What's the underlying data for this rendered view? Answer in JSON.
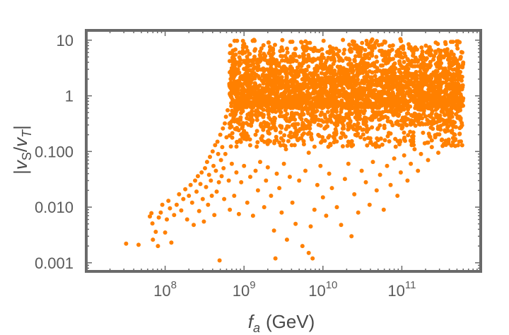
{
  "chart_data": {
    "type": "scatter",
    "title": "",
    "xlabel": {
      "symbol": "f",
      "subscript": "a",
      "unit": "(GeV)"
    },
    "ylabel": {
      "text": "|v_S/v_T|",
      "num": "v",
      "num_sub": "S",
      "den": "v",
      "den_sub": "T"
    },
    "xscale": "log",
    "yscale": "log",
    "xlim": [
      10000000.0,
      1000000000000.0
    ],
    "ylim": [
      0.0007,
      15
    ],
    "x_ticks": [
      {
        "value": 100000000.0,
        "base": "10",
        "exp": "8"
      },
      {
        "value": 1000000000.0,
        "base": "10",
        "exp": "9"
      },
      {
        "value": 10000000000.0,
        "base": "10",
        "exp": "10"
      },
      {
        "value": 100000000000.0,
        "base": "10",
        "exp": "11"
      }
    ],
    "y_ticks": [
      {
        "value": 0.001,
        "label": "0.001"
      },
      {
        "value": 0.01,
        "label": "0.010"
      },
      {
        "value": 0.1,
        "label": "0.100"
      },
      {
        "value": 1,
        "label": "1"
      },
      {
        "value": 10,
        "label": "10"
      }
    ],
    "series": [
      {
        "color": "#ff8000",
        "dense_region": {
          "x_range": [
            650000000.0,
            600000000000.0
          ],
          "y_range": [
            0.6,
            11
          ]
        },
        "points": [
          [
            32000000.0,
            0.0022
          ],
          [
            46000000.0,
            0.0021
          ],
          [
            64000000.0,
            0.0068
          ],
          [
            67000000.0,
            0.0078
          ],
          [
            69000000.0,
            0.0051
          ],
          [
            70000000.0,
            0.0026
          ],
          [
            76000000.0,
            0.0036
          ],
          [
            81000000.0,
            0.002
          ],
          [
            83000000.0,
            0.0065
          ],
          [
            88000000.0,
            0.008
          ],
          [
            92000000.0,
            0.011
          ],
          [
            100000000.0,
            0.0035
          ],
          [
            105000000.0,
            0.006
          ],
          [
            110000000.0,
            0.013
          ],
          [
            115000000.0,
            0.0095
          ],
          [
            120000000.0,
            0.0023
          ],
          [
            130000000.0,
            0.0072
          ],
          [
            140000000.0,
            0.011
          ],
          [
            150000000.0,
            0.017
          ],
          [
            160000000.0,
            0.0087
          ],
          [
            170000000.0,
            0.014
          ],
          [
            180000000.0,
            0.021
          ],
          [
            190000000.0,
            0.006
          ],
          [
            200000000.0,
            0.016
          ],
          [
            210000000.0,
            0.025
          ],
          [
            220000000.0,
            0.012
          ],
          [
            230000000.0,
            0.0048
          ],
          [
            240000000.0,
            0.03
          ],
          [
            250000000.0,
            0.019
          ],
          [
            260000000.0,
            0.036
          ],
          [
            270000000.0,
            0.0085
          ],
          [
            280000000.0,
            0.026
          ],
          [
            290000000.0,
            0.042
          ],
          [
            300000000.0,
            0.014
          ],
          [
            310000000.0,
            0.0055
          ],
          [
            320000000.0,
            0.05
          ],
          [
            330000000.0,
            0.023
          ],
          [
            340000000.0,
            0.065
          ],
          [
            350000000.0,
            0.011
          ],
          [
            360000000.0,
            0.038
          ],
          [
            370000000.0,
            0.08
          ],
          [
            380000000.0,
            0.03
          ],
          [
            390000000.0,
            0.016
          ],
          [
            400000000.0,
            0.1
          ],
          [
            410000000.0,
            0.055
          ],
          [
            420000000.0,
            0.0072
          ],
          [
            430000000.0,
            0.13
          ],
          [
            440000000.0,
            0.045
          ],
          [
            450000000.0,
            0.019
          ],
          [
            460000000.0,
            0.15
          ],
          [
            470000000.0,
            0.09
          ],
          [
            480000000.0,
            0.028
          ],
          [
            490000000.0,
            0.0011
          ],
          [
            500000000.0,
            0.2
          ],
          [
            510000000.0,
            0.07
          ],
          [
            520000000.0,
            0.036
          ],
          [
            530000000.0,
            0.12
          ],
          [
            540000000.0,
            0.26
          ],
          [
            550000000.0,
            0.05
          ],
          [
            560000000.0,
            0.014
          ],
          [
            570000000.0,
            0.32
          ],
          [
            580000000.0,
            0.09
          ],
          [
            590000000.0,
            0.42
          ],
          [
            600000000.0,
            0.18
          ],
          [
            620000000.0,
            0.55
          ],
          [
            640000000.0,
            0.03
          ],
          [
            660000000.0,
            0.009
          ],
          [
            700000000.0,
            0.06
          ],
          [
            750000000.0,
            0.016
          ],
          [
            800000000.0,
            0.042
          ],
          [
            860000000.0,
            0.0075
          ],
          [
            920000000.0,
            0.028
          ],
          [
            1000000000.0,
            0.055
          ],
          [
            1100000000.0,
            0.012
          ],
          [
            1200000000.0,
            0.035
          ],
          [
            1300000000.0,
            0.007
          ],
          [
            1400000000.0,
            0.045
          ],
          [
            1500000000.0,
            0.02
          ],
          [
            1600000000.0,
            0.065
          ],
          [
            1800000000.0,
            0.01
          ],
          [
            1900000000.0,
            0.03
          ],
          [
            2000000000.0,
            0.052
          ],
          [
            2200000000.0,
            0.016
          ],
          [
            2400000000.0,
            0.0038
          ],
          [
            2500000000.0,
            0.0012
          ],
          [
            2600000000.0,
            0.04
          ],
          [
            2800000000.0,
            0.022
          ],
          [
            3000000000.0,
            0.008
          ],
          [
            3200000000.0,
            0.06
          ],
          [
            3500000000.0,
            0.0026
          ],
          [
            3800000000.0,
            0.035
          ],
          [
            4100000000.0,
            0.012
          ],
          [
            4500000000.0,
            0.005
          ],
          [
            5000000000.0,
            0.03
          ],
          [
            5500000000.0,
            0.002
          ],
          [
            6000000000.0,
            0.045
          ],
          [
            6600000000.0,
            0.0015
          ],
          [
            7000000000.0,
            0.0045
          ],
          [
            7400000000.0,
            0.0012
          ],
          [
            7800000000.0,
            0.009
          ],
          [
            8500000000.0,
            0.025
          ],
          [
            9300000000.0,
            0.055
          ],
          [
            10000000000.0,
            0.015
          ],
          [
            11000000000.0,
            0.007
          ],
          [
            12000000000.0,
            0.04
          ],
          [
            13000000000.0,
            0.022
          ],
          [
            15000000000.0,
            0.01
          ],
          [
            17000000000.0,
            0.0048
          ],
          [
            19000000000.0,
            0.032
          ],
          [
            21000000000.0,
            0.06
          ],
          [
            23000000000.0,
            0.003
          ],
          [
            25000000000.0,
            0.017
          ],
          [
            28000000000.0,
            0.008
          ],
          [
            31000000000.0,
            0.045
          ],
          [
            35000000000.0,
            0.028
          ],
          [
            39000000000.0,
            0.011
          ],
          [
            43000000000.0,
            0.065
          ],
          [
            48000000000.0,
            0.02
          ],
          [
            53000000000.0,
            0.038
          ],
          [
            59000000000.0,
            0.009
          ],
          [
            65000000000.0,
            0.055
          ],
          [
            72000000000.0,
            0.025
          ],
          [
            80000000000.0,
            0.075
          ],
          [
            88000000000.0,
            0.016
          ],
          [
            97000000000.0,
            0.042
          ],
          [
            107000000000.0,
            0.085
          ],
          [
            118000000000.0,
            0.03
          ],
          [
            130000000000.0,
            0.06
          ],
          [
            145000000000.0,
            0.11
          ],
          [
            160000000000.0,
            0.045
          ],
          [
            175000000000.0,
            0.09
          ],
          [
            195000000000.0,
            0.14
          ],
          [
            215000000000.0,
            0.07
          ],
          [
            240000000000.0,
            0.12
          ],
          [
            265000000000.0,
            0.18
          ],
          [
            290000000000.0,
            0.095
          ],
          [
            320000000000.0,
            0.16
          ],
          [
            350000000000.0,
            0.24
          ],
          [
            390000000000.0,
            0.14
          ],
          [
            430000000000.0,
            0.3
          ],
          [
            470000000000.0,
            0.2
          ],
          [
            510000000000.0,
            0.4
          ],
          [
            550000000000.0,
            0.55
          ],
          [
            580000000000.0,
            0.7
          ],
          [
            600000000000.0,
            0.9
          ],
          [
            700000000.0,
            0.35
          ],
          [
            800000000.0,
            0.25
          ],
          [
            900000000.0,
            0.4
          ],
          [
            1000000000.0,
            0.17
          ],
          [
            1200000000.0,
            0.3
          ],
          [
            1400000000.0,
            0.2
          ],
          [
            1700000000.0,
            0.45
          ],
          [
            2000000000.0,
            0.14
          ],
          [
            2400000000.0,
            0.32
          ],
          [
            2900000000.0,
            0.22
          ],
          [
            3400000000.0,
            0.11
          ],
          [
            4000000000.0,
            0.38
          ],
          [
            4800000000.0,
            0.16
          ],
          [
            5600000000.0,
            0.28
          ],
          [
            6600000000.0,
            0.095
          ],
          [
            7800000000.0,
            0.34
          ],
          [
            9000000000.0,
            0.19
          ],
          [
            10500000000.0,
            0.26
          ],
          [
            12500000000.0,
            0.13
          ],
          [
            15000000000.0,
            0.36
          ],
          [
            18000000000.0,
            0.21
          ],
          [
            21000000000.0,
            0.15
          ],
          [
            25000000000.0,
            0.3
          ],
          [
            30000000000.0,
            0.18
          ],
          [
            36000000000.0,
            0.25
          ],
          [
            42000000000.0,
            0.37
          ],
          [
            50000000000.0,
            0.16
          ],
          [
            60000000000.0,
            0.29
          ],
          [
            72000000000.0,
            0.21
          ],
          [
            85000000000.0,
            0.33
          ],
          [
            100000000000.0,
            0.26
          ],
          [
            120000000000.0,
            0.38
          ],
          [
            140000000000.0,
            0.22
          ],
          [
            170000000000.0,
            0.43
          ],
          [
            200000000000.0,
            0.31
          ],
          [
            240000000000.0,
            0.48
          ],
          [
            290000000000.0,
            0.35
          ],
          [
            350000000000.0,
            0.45
          ],
          [
            420000000000.0,
            0.52
          ],
          [
            500000000000.0,
            0.62
          ]
        ]
      }
    ],
    "grid": false,
    "legend": null
  }
}
